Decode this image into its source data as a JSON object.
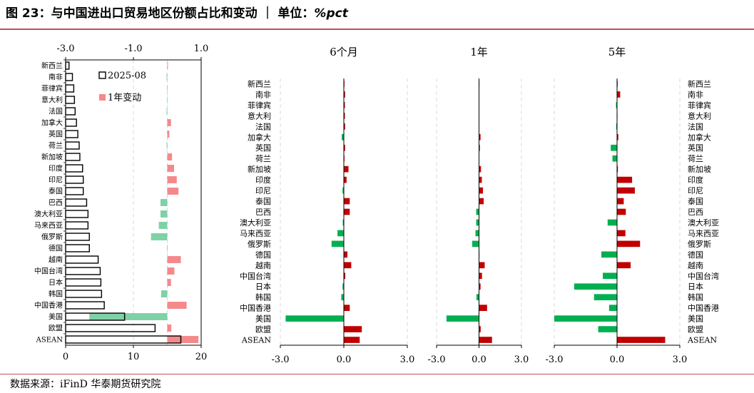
{
  "title": {
    "text": "图 23：与中国进出口贸易地区份额占比和变动 ｜ 单位：",
    "unit": "%pct"
  },
  "source": "数据来源：iFinD  华泰期货研究院",
  "colors": {
    "bar_outline": "#000000",
    "change_light": "#f4898b",
    "change_light_negative": "#7fd1a6",
    "positive": "#c00000",
    "negative": "#00b050",
    "rule": "#c0504d",
    "grid": "#d9d9d9"
  },
  "chart_data": [
    {
      "type": "bar",
      "orientation": "horizontal",
      "categories": [
        "新西兰",
        "南非",
        "菲律宾",
        "意大利",
        "法国",
        "加拿大",
        "英国",
        "荷兰",
        "新加坡",
        "印度",
        "印尼",
        "泰国",
        "巴西",
        "澳大利亚",
        "马来西亚",
        "俄罗斯",
        "德国",
        "越南",
        "中国台湾",
        "日本",
        "韩国",
        "中国香港",
        "美国",
        "欧盟",
        "ASEAN"
      ],
      "series": [
        {
          "name": "2025-08",
          "axis": "bottom",
          "values": [
            0.5,
            1.0,
            1.2,
            1.3,
            1.4,
            1.6,
            1.8,
            2.0,
            2.1,
            2.5,
            2.6,
            2.6,
            3.1,
            3.3,
            3.3,
            3.5,
            3.5,
            4.8,
            5.1,
            5.2,
            5.3,
            5.7,
            8.7,
            13.2,
            17.0
          ]
        },
        {
          "name": "1年变动",
          "axis": "top",
          "values": [
            0.02,
            -0.02,
            -0.01,
            -0.01,
            -0.02,
            0.11,
            0.06,
            -0.02,
            0.14,
            0.2,
            0.28,
            0.33,
            -0.2,
            -0.2,
            -0.25,
            -0.48,
            0.01,
            0.4,
            0.21,
            0.11,
            -0.18,
            0.57,
            -2.3,
            0.12,
            0.92
          ]
        }
      ],
      "xlim_bottom": [
        0,
        20
      ],
      "xticks_bottom": [
        "0",
        "10",
        "20"
      ],
      "xlim_top": [
        -3.0,
        1.0
      ],
      "xticks_top": [
        "-3.0",
        "-1.0",
        "1.0"
      ],
      "legend": {
        "placement": "top-right",
        "entries": [
          "2025-08",
          "1年变动"
        ]
      }
    },
    {
      "type": "bar",
      "orientation": "horizontal",
      "title": "6个月",
      "categories": [
        "新西兰",
        "南非",
        "菲律宾",
        "意大利",
        "法国",
        "加拿大",
        "英国",
        "荷兰",
        "新加坡",
        "印度",
        "印尼",
        "泰国",
        "巴西",
        "澳大利亚",
        "马来西亚",
        "俄罗斯",
        "德国",
        "越南",
        "中国台湾",
        "日本",
        "韩国",
        "中国香港",
        "美国",
        "欧盟",
        "ASEAN"
      ],
      "values": [
        0.03,
        0.06,
        0.05,
        0.05,
        0.06,
        -0.1,
        0.06,
        0.03,
        0.22,
        0.13,
        -0.06,
        0.28,
        0.28,
        -0.05,
        -0.3,
        -0.58,
        0.17,
        0.35,
        0.07,
        -0.06,
        -0.12,
        0.28,
        -2.75,
        0.85,
        0.75
      ],
      "xlim": [
        -3.0,
        3.0
      ],
      "xticks": [
        "-3.0",
        "0.0",
        "3.0"
      ]
    },
    {
      "type": "bar",
      "orientation": "horizontal",
      "title": "1年",
      "categories": [
        "新西兰",
        "南非",
        "菲律宾",
        "意大利",
        "法国",
        "加拿大",
        "英国",
        "荷兰",
        "新加坡",
        "印度",
        "印尼",
        "泰国",
        "巴西",
        "澳大利亚",
        "马来西亚",
        "俄罗斯",
        "德国",
        "越南",
        "中国台湾",
        "日本",
        "韩国",
        "中国香港",
        "美国",
        "欧盟",
        "ASEAN"
      ],
      "values": [
        0.02,
        -0.02,
        -0.01,
        -0.01,
        -0.02,
        0.11,
        0.06,
        -0.02,
        0.14,
        0.2,
        0.28,
        0.33,
        -0.2,
        -0.2,
        -0.25,
        -0.48,
        0.01,
        0.4,
        0.21,
        0.11,
        -0.18,
        0.57,
        -2.3,
        0.12,
        0.92
      ],
      "xlim": [
        -3.0,
        3.0
      ],
      "xticks": [
        "-3.0",
        "0.0",
        "3.0"
      ]
    },
    {
      "type": "bar",
      "orientation": "horizontal",
      "title": "5年",
      "categories": [
        "新西兰",
        "南非",
        "菲律宾",
        "意大利",
        "法国",
        "加拿大",
        "英国",
        "荷兰",
        "新加坡",
        "印度",
        "印尼",
        "泰国",
        "巴西",
        "澳大利亚",
        "马来西亚",
        "俄罗斯",
        "德国",
        "越南",
        "中国台湾",
        "日本",
        "韩国",
        "中国香港",
        "美国",
        "欧盟",
        "ASEAN"
      ],
      "values": [
        0.03,
        0.15,
        -0.05,
        0.02,
        -0.04,
        0.06,
        -0.3,
        -0.22,
        0.04,
        0.72,
        0.85,
        0.32,
        0.42,
        -0.45,
        0.4,
        1.1,
        -0.75,
        0.65,
        -0.68,
        -2.05,
        -1.1,
        -0.38,
        -3.0,
        -0.9,
        2.3
      ],
      "xlim": [
        -3.0,
        3.0
      ],
      "xticks": [
        "-3.0",
        "0.0",
        "3.0"
      ]
    }
  ]
}
